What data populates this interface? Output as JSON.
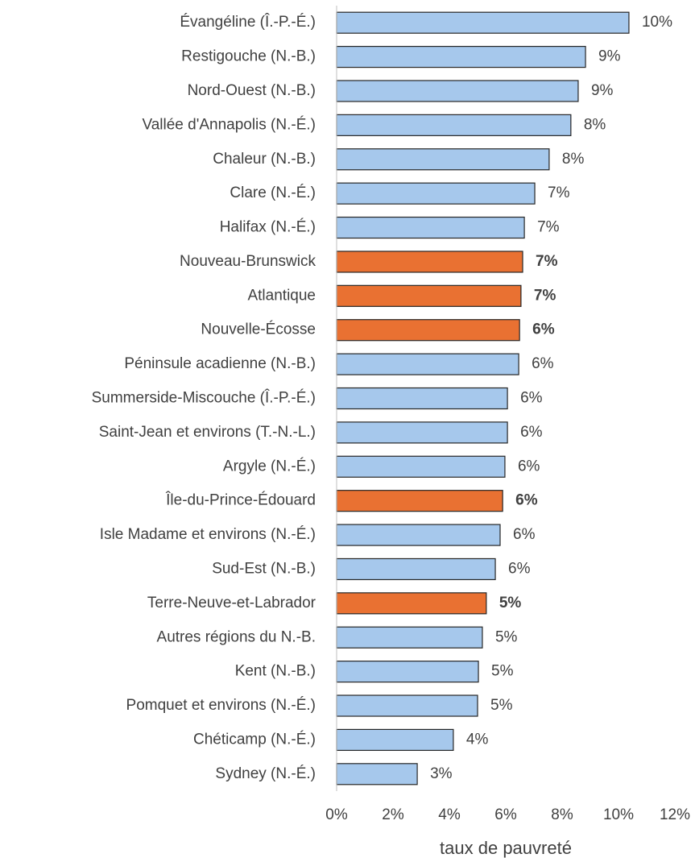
{
  "chart_data": {
    "type": "hbar",
    "x_label": "taux de pauvreté",
    "categories": [
      "Évangéline (Î.-P.-É.)",
      "Restigouche (N.-B.)",
      "Nord-Ouest (N.-B.)",
      "Vallée d'Annapolis (N.-É.)",
      "Chaleur (N.-B.)",
      "Clare (N.-É.)",
      "Halifax (N.-É.)",
      "Nouveau-Brunswick",
      "Atlantique",
      "Nouvelle-Écosse",
      "Péninsule acadienne (N.-B.)",
      "Summerside-Miscouche (Î.-P.-É.)",
      "Saint-Jean et environs (T.-N.-L.)",
      "Argyle (N.-É.)",
      "Île-du-Prince-Édouard",
      "Isle Madame et environs (N.-É.)",
      "Sud-Est (N.-B.)",
      "Terre-Neuve-et-Labrador",
      "Autres régions du N.-B.",
      "Kent (N.-B.)",
      "Pomquet et environs (N.-É.)",
      "Chéticamp (N.-É.)",
      "Sydney (N.-É.)"
    ],
    "values": [
      10.37,
      8.83,
      8.57,
      8.31,
      7.54,
      7.03,
      6.66,
      6.6,
      6.54,
      6.49,
      6.46,
      6.06,
      6.06,
      5.97,
      5.89,
      5.8,
      5.63,
      5.31,
      5.17,
      5.03,
      5.0,
      4.14,
      2.86
    ],
    "value_labels": [
      "10%",
      "9%",
      "9%",
      "8%",
      "8%",
      "7%",
      "7%",
      "7%",
      "7%",
      "6%",
      "6%",
      "6%",
      "6%",
      "6%",
      "6%",
      "6%",
      "6%",
      "5%",
      "5%",
      "5%",
      "5%",
      "4%",
      "3%"
    ],
    "color": "#a6c8ec",
    "colors": [
      "#a6c8ec",
      "#a6c8ec",
      "#a6c8ec",
      "#a6c8ec",
      "#a6c8ec",
      "#a6c8ec",
      "#a6c8ec",
      "#e97132",
      "#e97132",
      "#e97132",
      "#a6c8ec",
      "#a6c8ec",
      "#a6c8ec",
      "#a6c8ec",
      "#e97132",
      "#a6c8ec",
      "#a6c8ec",
      "#e97132",
      "#a6c8ec",
      "#a6c8ec",
      "#a6c8ec",
      "#a6c8ec",
      "#a6c8ec"
    ],
    "xlim": [
      0,
      12
    ],
    "xticks": [
      {
        "value": 0,
        "label": "0%"
      },
      {
        "value": 2,
        "label": "2%"
      },
      {
        "value": 4,
        "label": "4%"
      },
      {
        "value": 6,
        "label": "6%"
      },
      {
        "value": 8,
        "label": "8%"
      },
      {
        "value": 10,
        "label": "10%"
      },
      {
        "value": 12,
        "label": "12%"
      }
    ],
    "grid": false
  }
}
